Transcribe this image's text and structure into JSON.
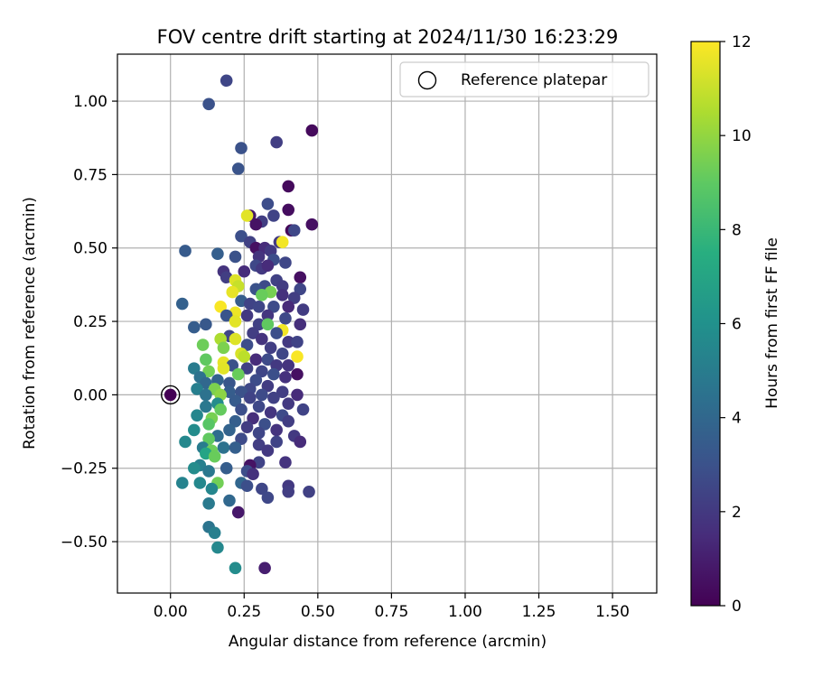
{
  "chart_data": {
    "type": "scatter",
    "title": "FOV centre drift starting at 2024/11/30 16:23:29",
    "xlabel": "Angular distance from reference (arcmin)",
    "ylabel": "Rotation from reference (arcmin)",
    "xlim": [
      -0.18,
      1.65
    ],
    "ylim": [
      -0.675,
      1.16
    ],
    "xticks": [
      0.0,
      0.25,
      0.5,
      0.75,
      1.0,
      1.25,
      1.5
    ],
    "xtick_labels": [
      "0.00",
      "0.25",
      "0.50",
      "0.75",
      "1.00",
      "1.25",
      "1.50"
    ],
    "yticks": [
      -0.5,
      -0.25,
      0.0,
      0.25,
      0.5,
      0.75,
      1.0
    ],
    "ytick_labels": [
      "−0.50",
      "−0.25",
      "0.00",
      "0.25",
      "0.50",
      "0.75",
      "1.00"
    ],
    "grid": true,
    "legend": {
      "placement": "upper-right",
      "entries": [
        "Reference platepar"
      ]
    },
    "reference_point": {
      "x": 0.0,
      "y": 0.0,
      "c": 0
    },
    "colorbar": {
      "label": "Hours from first FF file",
      "colormap": "viridis",
      "range": [
        0,
        12
      ],
      "ticks": [
        0,
        2,
        4,
        6,
        8,
        10,
        12
      ],
      "tick_labels": [
        "0",
        "2",
        "4",
        "6",
        "8",
        "10",
        "12"
      ]
    },
    "points": [
      {
        "x": 0.19,
        "y": 1.07,
        "c": 2.5
      },
      {
        "x": 0.13,
        "y": 0.99,
        "c": 3.0
      },
      {
        "x": 0.48,
        "y": 0.9,
        "c": 0.3
      },
      {
        "x": 0.36,
        "y": 0.86,
        "c": 2.2
      },
      {
        "x": 0.24,
        "y": 0.84,
        "c": 3.0
      },
      {
        "x": 0.23,
        "y": 0.77,
        "c": 3.1
      },
      {
        "x": 0.4,
        "y": 0.71,
        "c": 0.3
      },
      {
        "x": 0.33,
        "y": 0.65,
        "c": 2.8
      },
      {
        "x": 0.4,
        "y": 0.63,
        "c": 0.4
      },
      {
        "x": 0.27,
        "y": 0.61,
        "c": 0.8
      },
      {
        "x": 0.35,
        "y": 0.61,
        "c": 2.4
      },
      {
        "x": 0.26,
        "y": 0.61,
        "c": 11.5
      },
      {
        "x": 0.31,
        "y": 0.59,
        "c": 2.2
      },
      {
        "x": 0.29,
        "y": 0.58,
        "c": 0.6
      },
      {
        "x": 0.48,
        "y": 0.58,
        "c": 0.5
      },
      {
        "x": 0.41,
        "y": 0.56,
        "c": 0.2
      },
      {
        "x": 0.42,
        "y": 0.56,
        "c": 2.6
      },
      {
        "x": 0.24,
        "y": 0.54,
        "c": 2.9
      },
      {
        "x": 0.27,
        "y": 0.52,
        "c": 2.3
      },
      {
        "x": 0.37,
        "y": 0.52,
        "c": 2.0
      },
      {
        "x": 0.38,
        "y": 0.52,
        "c": 11.8
      },
      {
        "x": 0.29,
        "y": 0.5,
        "c": 0.5
      },
      {
        "x": 0.32,
        "y": 0.5,
        "c": 1.5
      },
      {
        "x": 0.34,
        "y": 0.49,
        "c": 2.0
      },
      {
        "x": 0.05,
        "y": 0.49,
        "c": 3.4
      },
      {
        "x": 0.16,
        "y": 0.48,
        "c": 3.6
      },
      {
        "x": 0.22,
        "y": 0.47,
        "c": 3.0
      },
      {
        "x": 0.3,
        "y": 0.47,
        "c": 1.8
      },
      {
        "x": 0.35,
        "y": 0.46,
        "c": 2.8
      },
      {
        "x": 0.39,
        "y": 0.45,
        "c": 2.5
      },
      {
        "x": 0.29,
        "y": 0.44,
        "c": 2.6
      },
      {
        "x": 0.31,
        "y": 0.43,
        "c": 2.0
      },
      {
        "x": 0.33,
        "y": 0.44,
        "c": 1.5
      },
      {
        "x": 0.18,
        "y": 0.42,
        "c": 1.8
      },
      {
        "x": 0.25,
        "y": 0.42,
        "c": 1.5
      },
      {
        "x": 0.19,
        "y": 0.4,
        "c": 2.2
      },
      {
        "x": 0.22,
        "y": 0.39,
        "c": 11.4
      },
      {
        "x": 0.44,
        "y": 0.4,
        "c": 0.5
      },
      {
        "x": 0.36,
        "y": 0.39,
        "c": 2.3
      },
      {
        "x": 0.23,
        "y": 0.37,
        "c": 11.0
      },
      {
        "x": 0.32,
        "y": 0.37,
        "c": 2.7
      },
      {
        "x": 0.38,
        "y": 0.37,
        "c": 2.1
      },
      {
        "x": 0.29,
        "y": 0.36,
        "c": 3.0
      },
      {
        "x": 0.34,
        "y": 0.35,
        "c": 9.5
      },
      {
        "x": 0.44,
        "y": 0.36,
        "c": 2.5
      },
      {
        "x": 0.21,
        "y": 0.35,
        "c": 11.6
      },
      {
        "x": 0.38,
        "y": 0.34,
        "c": 1.7
      },
      {
        "x": 0.31,
        "y": 0.34,
        "c": 9.2
      },
      {
        "x": 0.42,
        "y": 0.33,
        "c": 2.2
      },
      {
        "x": 0.24,
        "y": 0.32,
        "c": 3.5
      },
      {
        "x": 0.27,
        "y": 0.31,
        "c": 2.4
      },
      {
        "x": 0.04,
        "y": 0.31,
        "c": 3.7
      },
      {
        "x": 0.17,
        "y": 0.3,
        "c": 11.9
      },
      {
        "x": 0.3,
        "y": 0.3,
        "c": 2.5
      },
      {
        "x": 0.35,
        "y": 0.3,
        "c": 2.7
      },
      {
        "x": 0.4,
        "y": 0.3,
        "c": 1.4
      },
      {
        "x": 0.45,
        "y": 0.29,
        "c": 2.1
      },
      {
        "x": 0.22,
        "y": 0.28,
        "c": 11.7
      },
      {
        "x": 0.19,
        "y": 0.27,
        "c": 3.1
      },
      {
        "x": 0.26,
        "y": 0.27,
        "c": 2.0
      },
      {
        "x": 0.33,
        "y": 0.27,
        "c": 1.9
      },
      {
        "x": 0.39,
        "y": 0.26,
        "c": 2.6
      },
      {
        "x": 0.22,
        "y": 0.25,
        "c": 11.5
      },
      {
        "x": 0.44,
        "y": 0.24,
        "c": 1.6
      },
      {
        "x": 0.12,
        "y": 0.24,
        "c": 3.3
      },
      {
        "x": 0.3,
        "y": 0.24,
        "c": 2.3
      },
      {
        "x": 0.33,
        "y": 0.24,
        "c": 9.0
      },
      {
        "x": 0.08,
        "y": 0.23,
        "c": 3.5
      },
      {
        "x": 0.38,
        "y": 0.22,
        "c": 11.8
      },
      {
        "x": 0.28,
        "y": 0.21,
        "c": 2.2
      },
      {
        "x": 0.36,
        "y": 0.21,
        "c": 2.9
      },
      {
        "x": 0.2,
        "y": 0.2,
        "c": 2.5
      },
      {
        "x": 0.17,
        "y": 0.19,
        "c": 10.5
      },
      {
        "x": 0.22,
        "y": 0.19,
        "c": 11.4
      },
      {
        "x": 0.31,
        "y": 0.19,
        "c": 1.8
      },
      {
        "x": 0.4,
        "y": 0.18,
        "c": 2.0
      },
      {
        "x": 0.43,
        "y": 0.18,
        "c": 2.4
      },
      {
        "x": 0.11,
        "y": 0.17,
        "c": 9.3
      },
      {
        "x": 0.26,
        "y": 0.17,
        "c": 2.8
      },
      {
        "x": 0.18,
        "y": 0.16,
        "c": 9.6
      },
      {
        "x": 0.34,
        "y": 0.16,
        "c": 2.2
      },
      {
        "x": 0.24,
        "y": 0.14,
        "c": 11.3
      },
      {
        "x": 0.25,
        "y": 0.13,
        "c": 10.8
      },
      {
        "x": 0.38,
        "y": 0.14,
        "c": 2.5
      },
      {
        "x": 0.43,
        "y": 0.13,
        "c": 11.9
      },
      {
        "x": 0.12,
        "y": 0.12,
        "c": 9.0
      },
      {
        "x": 0.29,
        "y": 0.12,
        "c": 1.5
      },
      {
        "x": 0.33,
        "y": 0.12,
        "c": 2.7
      },
      {
        "x": 0.18,
        "y": 0.11,
        "c": 11.6
      },
      {
        "x": 0.21,
        "y": 0.1,
        "c": 3.0
      },
      {
        "x": 0.36,
        "y": 0.1,
        "c": 2.0
      },
      {
        "x": 0.4,
        "y": 0.1,
        "c": 1.8
      },
      {
        "x": 0.08,
        "y": 0.09,
        "c": 5.0
      },
      {
        "x": 0.26,
        "y": 0.09,
        "c": 2.3
      },
      {
        "x": 0.18,
        "y": 0.09,
        "c": 11.5
      },
      {
        "x": 0.31,
        "y": 0.08,
        "c": 2.5
      },
      {
        "x": 0.13,
        "y": 0.08,
        "c": 9.4
      },
      {
        "x": 0.43,
        "y": 0.07,
        "c": 0.5
      },
      {
        "x": 0.23,
        "y": 0.07,
        "c": 9.2
      },
      {
        "x": 0.35,
        "y": 0.07,
        "c": 2.9
      },
      {
        "x": 0.1,
        "y": 0.06,
        "c": 4.5
      },
      {
        "x": 0.39,
        "y": 0.06,
        "c": 1.7
      },
      {
        "x": 0.16,
        "y": 0.05,
        "c": 3.8
      },
      {
        "x": 0.29,
        "y": 0.05,
        "c": 2.8
      },
      {
        "x": 0.2,
        "y": 0.04,
        "c": 3.2
      },
      {
        "x": 0.12,
        "y": 0.04,
        "c": 4.0
      },
      {
        "x": 0.33,
        "y": 0.03,
        "c": 2.1
      },
      {
        "x": 0.27,
        "y": 0.02,
        "c": 2.6
      },
      {
        "x": 0.15,
        "y": 0.02,
        "c": 9.6
      },
      {
        "x": 0.09,
        "y": 0.02,
        "c": 5.2
      },
      {
        "x": 0.2,
        "y": 0.01,
        "c": 3.5
      },
      {
        "x": 0.38,
        "y": 0.01,
        "c": 2.2
      },
      {
        "x": 0.24,
        "y": 0.01,
        "c": 3.0
      },
      {
        "x": 0.43,
        "y": 0.0,
        "c": 1.5
      },
      {
        "x": 0.31,
        "y": 0.0,
        "c": 2.7
      },
      {
        "x": 0.12,
        "y": 0.0,
        "c": 4.5
      },
      {
        "x": 0.17,
        "y": 0.0,
        "c": 9.9
      },
      {
        "x": 0.35,
        "y": -0.01,
        "c": 2.3
      },
      {
        "x": 0.27,
        "y": -0.01,
        "c": 2.4
      },
      {
        "x": 0.22,
        "y": -0.02,
        "c": 3.4
      },
      {
        "x": 0.16,
        "y": -0.03,
        "c": 5.8
      },
      {
        "x": 0.4,
        "y": -0.03,
        "c": 2.0
      },
      {
        "x": 0.12,
        "y": -0.04,
        "c": 4.8
      },
      {
        "x": 0.3,
        "y": -0.04,
        "c": 2.6
      },
      {
        "x": 0.45,
        "y": -0.05,
        "c": 2.4
      },
      {
        "x": 0.17,
        "y": -0.05,
        "c": 9.1
      },
      {
        "x": 0.24,
        "y": -0.05,
        "c": 2.9
      },
      {
        "x": 0.34,
        "y": -0.06,
        "c": 1.9
      },
      {
        "x": 0.09,
        "y": -0.07,
        "c": 5.5
      },
      {
        "x": 0.38,
        "y": -0.07,
        "c": 2.7
      },
      {
        "x": 0.28,
        "y": -0.08,
        "c": 1.6
      },
      {
        "x": 0.14,
        "y": -0.08,
        "c": 9.5
      },
      {
        "x": 0.22,
        "y": -0.09,
        "c": 3.6
      },
      {
        "x": 0.4,
        "y": -0.09,
        "c": 2.2
      },
      {
        "x": 0.32,
        "y": -0.1,
        "c": 2.9
      },
      {
        "x": 0.13,
        "y": -0.1,
        "c": 8.8
      },
      {
        "x": 0.26,
        "y": -0.11,
        "c": 2.1
      },
      {
        "x": 0.36,
        "y": -0.12,
        "c": 1.8
      },
      {
        "x": 0.08,
        "y": -0.12,
        "c": 5.8
      },
      {
        "x": 0.2,
        "y": -0.12,
        "c": 3.8
      },
      {
        "x": 0.3,
        "y": -0.13,
        "c": 2.5
      },
      {
        "x": 0.42,
        "y": -0.14,
        "c": 2.0
      },
      {
        "x": 0.16,
        "y": -0.14,
        "c": 4.2
      },
      {
        "x": 0.24,
        "y": -0.15,
        "c": 2.7
      },
      {
        "x": 0.13,
        "y": -0.15,
        "c": 9.0
      },
      {
        "x": 0.36,
        "y": -0.16,
        "c": 2.4
      },
      {
        "x": 0.05,
        "y": -0.16,
        "c": 5.6
      },
      {
        "x": 0.44,
        "y": -0.16,
        "c": 1.5
      },
      {
        "x": 0.3,
        "y": -0.17,
        "c": 2.2
      },
      {
        "x": 0.11,
        "y": -0.18,
        "c": 5.0
      },
      {
        "x": 0.18,
        "y": -0.18,
        "c": 4.5
      },
      {
        "x": 0.22,
        "y": -0.18,
        "c": 3.6
      },
      {
        "x": 0.14,
        "y": -0.19,
        "c": 9.3
      },
      {
        "x": 0.33,
        "y": -0.19,
        "c": 2.0
      },
      {
        "x": 0.12,
        "y": -0.2,
        "c": 7.0
      },
      {
        "x": 0.15,
        "y": -0.21,
        "c": 9.2
      },
      {
        "x": 0.39,
        "y": -0.23,
        "c": 1.8
      },
      {
        "x": 0.3,
        "y": -0.23,
        "c": 2.4
      },
      {
        "x": 0.27,
        "y": -0.24,
        "c": 0.6
      },
      {
        "x": 0.1,
        "y": -0.24,
        "c": 5.2
      },
      {
        "x": 0.08,
        "y": -0.25,
        "c": 5.8
      },
      {
        "x": 0.19,
        "y": -0.25,
        "c": 3.5
      },
      {
        "x": 0.26,
        "y": -0.26,
        "c": 2.8
      },
      {
        "x": 0.13,
        "y": -0.26,
        "c": 4.8
      },
      {
        "x": 0.28,
        "y": -0.27,
        "c": 1.7
      },
      {
        "x": 0.04,
        "y": -0.3,
        "c": 5.4
      },
      {
        "x": 0.1,
        "y": -0.3,
        "c": 5.6
      },
      {
        "x": 0.24,
        "y": -0.3,
        "c": 3.9
      },
      {
        "x": 0.16,
        "y": -0.3,
        "c": 9.4
      },
      {
        "x": 0.14,
        "y": -0.32,
        "c": 5.5
      },
      {
        "x": 0.26,
        "y": -0.31,
        "c": 2.9
      },
      {
        "x": 0.31,
        "y": -0.32,
        "c": 2.5
      },
      {
        "x": 0.4,
        "y": -0.31,
        "c": 2.0
      },
      {
        "x": 0.4,
        "y": -0.33,
        "c": 2.2
      },
      {
        "x": 0.47,
        "y": -0.33,
        "c": 2.3
      },
      {
        "x": 0.33,
        "y": -0.35,
        "c": 2.6
      },
      {
        "x": 0.2,
        "y": -0.36,
        "c": 4.0
      },
      {
        "x": 0.13,
        "y": -0.37,
        "c": 4.9
      },
      {
        "x": 0.23,
        "y": -0.4,
        "c": 0.8
      },
      {
        "x": 0.13,
        "y": -0.45,
        "c": 4.6
      },
      {
        "x": 0.15,
        "y": -0.47,
        "c": 5.2
      },
      {
        "x": 0.16,
        "y": -0.52,
        "c": 5.6
      },
      {
        "x": 0.22,
        "y": -0.59,
        "c": 5.8
      },
      {
        "x": 0.32,
        "y": -0.59,
        "c": 1.0
      }
    ]
  }
}
